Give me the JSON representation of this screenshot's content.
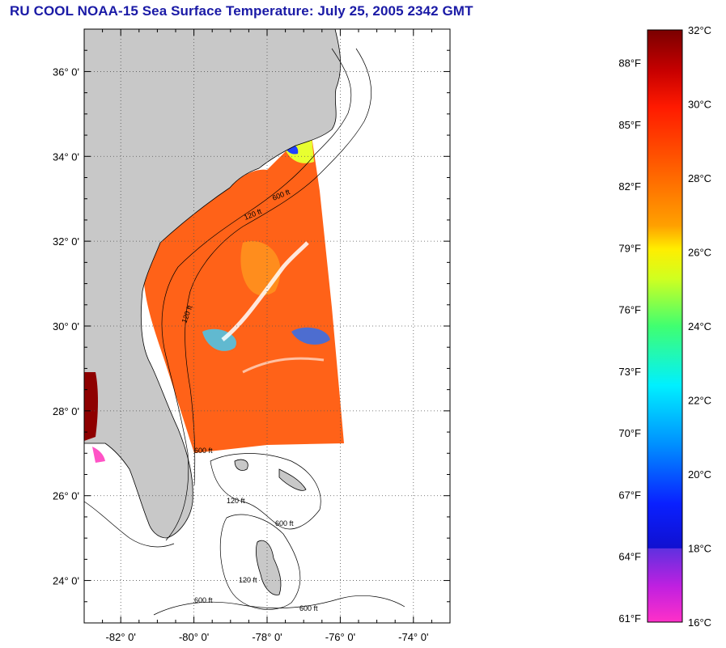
{
  "title": "RU COOL  NOAA-15  Sea Surface Temperature:  July 25, 2005 2342 GMT",
  "map": {
    "type": "sea-surface-temperature-map",
    "lon_range": [
      -83,
      -73
    ],
    "lat_range": [
      23,
      37
    ],
    "lat_ticks": [
      {
        "value": 24,
        "label": "24° 0'"
      },
      {
        "value": 26,
        "label": "26° 0'"
      },
      {
        "value": 28,
        "label": "28° 0'"
      },
      {
        "value": 30,
        "label": "30° 0'"
      },
      {
        "value": 32,
        "label": "32° 0'"
      },
      {
        "value": 34,
        "label": "34° 0'"
      },
      {
        "value": 36,
        "label": "36° 0'"
      }
    ],
    "lon_ticks": [
      {
        "value": -82,
        "label": "-82° 0'"
      },
      {
        "value": -80,
        "label": "-80° 0'"
      },
      {
        "value": -78,
        "label": "-78° 0'"
      },
      {
        "value": -76,
        "label": "-76° 0'"
      },
      {
        "value": -74,
        "label": "-74° 0'"
      }
    ],
    "grid": true,
    "contours": [
      {
        "label": "120 ft"
      },
      {
        "label": "600 ft"
      }
    ],
    "land_color": "#c8c8c8"
  },
  "colorbar": {
    "celsius": [
      "32°C",
      "30°C",
      "28°C",
      "26°C",
      "24°C",
      "22°C",
      "20°C",
      "18°C",
      "16°C"
    ],
    "fahrenheit": [
      "88°F",
      "85°F",
      "82°F",
      "79°F",
      "76°F",
      "73°F",
      "70°F",
      "67°F",
      "64°F",
      "61°F"
    ]
  }
}
